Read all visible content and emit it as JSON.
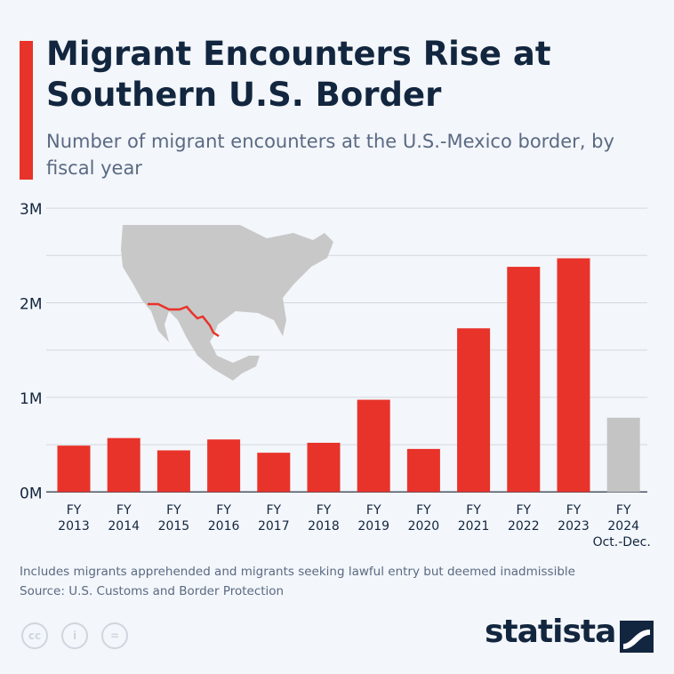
{
  "header": {
    "title": "Migrant Encounters Rise at Southern U.S. Border",
    "subtitle": "Number of migrant encounters at the U.S.-Mexico border, by fiscal year"
  },
  "chart_data": {
    "type": "bar",
    "title": "Migrant Encounters Rise at Southern U.S. Border",
    "subtitle": "Number of migrant encounters at the U.S.-Mexico border, by fiscal year",
    "categories": [
      [
        "FY",
        "2013"
      ],
      [
        "FY",
        "2014"
      ],
      [
        "FY",
        "2015"
      ],
      [
        "FY",
        "2016"
      ],
      [
        "FY",
        "2017"
      ],
      [
        "FY",
        "2018"
      ],
      [
        "FY",
        "2019"
      ],
      [
        "FY",
        "2020"
      ],
      [
        "FY",
        "2021"
      ],
      [
        "FY",
        "2022"
      ],
      [
        "FY",
        "2023"
      ],
      [
        "FY",
        "2024",
        "Oct.-Dec."
      ]
    ],
    "values": [
      0.49,
      0.57,
      0.44,
      0.555,
      0.415,
      0.52,
      0.975,
      0.455,
      1.73,
      2.38,
      2.47,
      0.785
    ],
    "unit": "M",
    "ylim": [
      0,
      3
    ],
    "yticks": [
      {
        "v": 0,
        "label": "0M"
      },
      {
        "v": 1,
        "label": "1M"
      },
      {
        "v": 2,
        "label": "2M"
      },
      {
        "v": 3,
        "label": "3M"
      }
    ],
    "grid": true,
    "colors": {
      "bar": "#e8332a",
      "partial_year_bar": "#c4c4c4",
      "map": "#c8c8c8",
      "border_line": "#e8332a"
    }
  },
  "footer": {
    "note": "Includes migrants apprehended and migrants seeking lawful entry but deemed inadmissible",
    "source": "Source: U.S. Customs and Border Protection",
    "logo": "statista",
    "license_icons": [
      "cc-icon",
      "attribution-icon",
      "no-derivatives-icon"
    ]
  }
}
